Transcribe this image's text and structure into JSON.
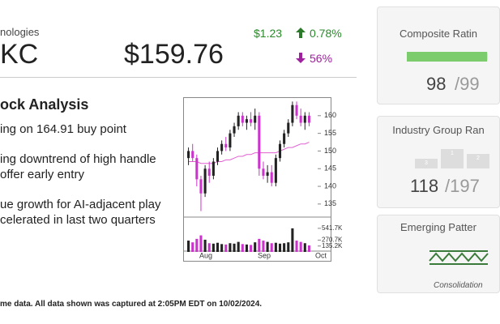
{
  "header": {
    "sector": "nologies",
    "ticker": "KC",
    "price": "$159.76",
    "change": "$1.23",
    "change_pct": "0.78%",
    "volume_pct": "56%"
  },
  "analysis": {
    "title": "ock Analysis",
    "bullets": [
      "ing on 164.91 buy point",
      "ing downtrend of high handle\noffer early entry",
      "ue growth for AI-adjacent play\ncelerated in last two quarters"
    ]
  },
  "footer": "me data. All data shown was captured at 2:05PM EDT on 10/02/2024.",
  "stock_chart": {
    "type": "candlestick",
    "open": [
      148,
      150,
      148,
      142,
      138,
      145,
      143,
      147,
      150,
      152,
      151,
      155,
      157,
      160,
      158,
      159,
      158,
      160,
      145,
      143,
      144,
      141,
      148,
      152,
      155,
      158,
      163,
      160,
      158,
      160
    ],
    "high": [
      151,
      152,
      149,
      143,
      146,
      147,
      148,
      151,
      153,
      154,
      156,
      158,
      161,
      161,
      160,
      161,
      162,
      161,
      147,
      146,
      146,
      149,
      153,
      156,
      159,
      164,
      164,
      162,
      161,
      161
    ],
    "low": [
      146,
      147,
      140,
      133,
      137,
      141,
      142,
      146,
      149,
      150,
      150,
      154,
      156,
      157,
      156,
      157,
      156,
      143,
      142,
      141,
      140,
      140,
      147,
      151,
      154,
      157,
      159,
      157,
      156,
      157
    ],
    "close": [
      150,
      148,
      142,
      138,
      145,
      143,
      147,
      150,
      152,
      151,
      155,
      157,
      160,
      158,
      159,
      158,
      160,
      145,
      143,
      144,
      141,
      148,
      152,
      155,
      158,
      163,
      160,
      158,
      160,
      158
    ],
    "moving_average": [
      147,
      147,
      147,
      146.5,
      146.5,
      146.5,
      146.5,
      147,
      147,
      147.5,
      147.5,
      148,
      148.5,
      148.5,
      149,
      149,
      149.5,
      149.5,
      149.5,
      149.5,
      149.5,
      149.5,
      150,
      150.5,
      151,
      151,
      151.5,
      152,
      152,
      152.5
    ],
    "volume": [
      260000,
      220000,
      300000,
      380000,
      280000,
      200000,
      190000,
      210000,
      180000,
      170000,
      200000,
      190000,
      230000,
      180000,
      170000,
      160000,
      220000,
      300000,
      260000,
      230000,
      200000,
      210000,
      190000,
      200000,
      220000,
      541700,
      260000,
      230000,
      200000,
      150000
    ],
    "ylim": [
      131.3,
      165
    ],
    "yticks": [
      135,
      140,
      145,
      150,
      155,
      160
    ],
    "vlim": [
      0,
      800000
    ],
    "vticks": [
      {
        "value": 541700,
        "label": "541.7K"
      },
      {
        "value": 270700,
        "label": "270.7K"
      },
      {
        "value": 135200,
        "label": "135.2K"
      }
    ],
    "months": [
      "Aug",
      "Sep",
      "Oct"
    ],
    "up_color": "#222222",
    "down_color": "#cc33cc",
    "ma_color": "#e060d0"
  },
  "composite": {
    "title": "Composite Ratin",
    "value": 98,
    "value_label": "98",
    "max": "/99"
  },
  "industry": {
    "title": "Industry Group Ran",
    "bars": [
      "3",
      "1",
      "2"
    ],
    "rank": "118",
    "total": "/197"
  },
  "pattern": {
    "title": "Emerging Patter",
    "name": "Consolidation"
  }
}
